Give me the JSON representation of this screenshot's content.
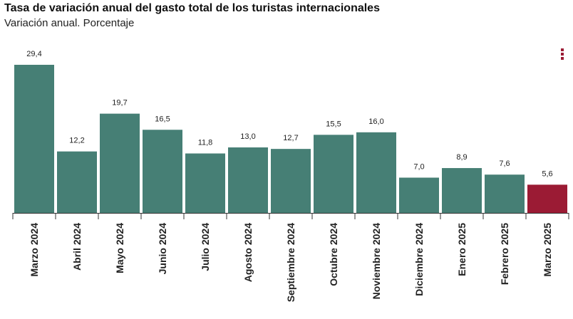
{
  "chart_data": {
    "type": "bar",
    "title": "Tasa de variación anual del gasto total de los turistas internacionales",
    "subtitle": "Variación anual. Porcentaje",
    "categories": [
      "Marzo 2024",
      "Abril 2024",
      "Mayo 2024",
      "Junio 2024",
      "Julio 2024",
      "Agosto 2024",
      "Septiembre 2024",
      "Octubre 2024",
      "Noviembre 2024",
      "Diciembre 2024",
      "Enero 2025",
      "Febrero 2025",
      "Marzo 2025"
    ],
    "values": [
      29.4,
      12.2,
      19.7,
      16.5,
      11.8,
      13.0,
      12.7,
      15.5,
      16.0,
      7.0,
      8.9,
      7.6,
      5.6
    ],
    "value_labels": [
      "29,4",
      "12,2",
      "19,7",
      "16,5",
      "11,8",
      "13,0",
      "12,7",
      "15,5",
      "16,0",
      "7,0",
      "8,9",
      "7,6",
      "5,6"
    ],
    "xlabel": "",
    "ylabel": "",
    "ylim": [
      0,
      29.4
    ],
    "grid": false,
    "colors": {
      "default": "#467f75",
      "highlight": "#9b1b34",
      "axis": "#333333"
    },
    "highlight_index": 12
  },
  "menu": {
    "icon": "more-vertical-icon"
  }
}
